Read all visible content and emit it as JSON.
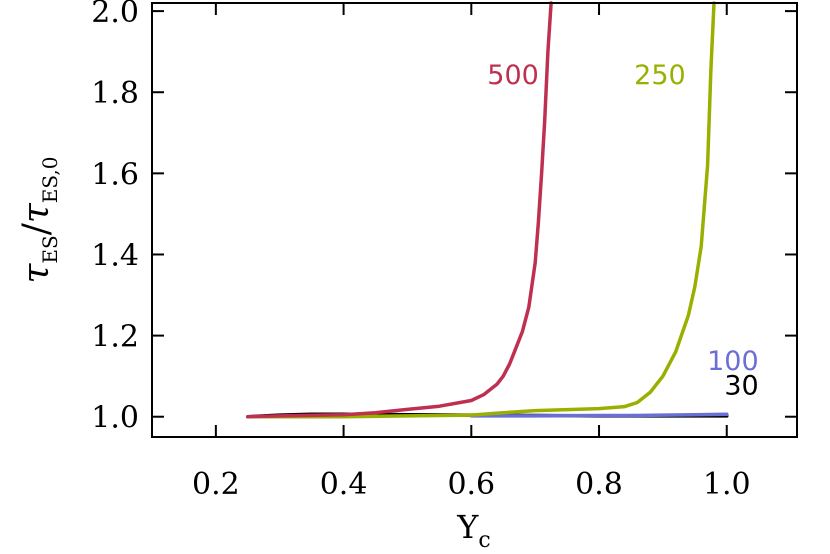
{
  "chart_data": {
    "type": "line",
    "title": "",
    "xlabel": {
      "main": "Y",
      "sub": "c"
    },
    "ylabel": {
      "num": "τ",
      "num_sub": "ES",
      "sep": "/",
      "den": "τ",
      "den_sub": "ES,0"
    },
    "xlim": [
      0.1,
      1.11
    ],
    "ylim": [
      0.95,
      2.02
    ],
    "xticks": [
      0.2,
      0.4,
      0.6,
      0.8,
      1.0
    ],
    "xtick_labels": [
      "0.2",
      "0.4",
      "0.6",
      "0.8",
      "1.0"
    ],
    "yticks": [
      1.0,
      1.2,
      1.4,
      1.6,
      1.8,
      2.0
    ],
    "ytick_labels": [
      "1.0",
      "1.2",
      "1.4",
      "1.6",
      "1.8",
      "2.0"
    ],
    "grid": false,
    "series": [
      {
        "name": "30",
        "color": "#000000",
        "x": [
          0.25,
          0.3,
          0.35,
          0.4,
          0.5,
          0.6,
          0.7,
          0.8,
          0.9,
          1.0
        ],
        "y": [
          1.0,
          1.004,
          1.006,
          1.006,
          1.005,
          1.004,
          1.003,
          1.002,
          1.002,
          1.002
        ]
      },
      {
        "name": "100",
        "color": "#6a6fd6",
        "x": [
          0.6,
          0.7,
          0.8,
          0.85,
          0.9,
          0.95,
          1.0
        ],
        "y": [
          1.002,
          1.002,
          1.003,
          1.003,
          1.004,
          1.005,
          1.006
        ]
      },
      {
        "name": "250",
        "color": "#9ab000",
        "x": [
          0.25,
          0.4,
          0.5,
          0.6,
          0.65,
          0.7,
          0.8,
          0.84,
          0.86,
          0.88,
          0.9,
          0.92,
          0.94,
          0.95,
          0.96,
          0.97,
          0.975,
          0.98
        ],
        "y": [
          1.0,
          1.0,
          1.002,
          1.004,
          1.01,
          1.015,
          1.02,
          1.025,
          1.035,
          1.06,
          1.1,
          1.16,
          1.25,
          1.32,
          1.42,
          1.62,
          1.85,
          2.02
        ]
      },
      {
        "name": "500",
        "color": "#bf3050",
        "x": [
          0.25,
          0.3,
          0.4,
          0.45,
          0.5,
          0.55,
          0.6,
          0.62,
          0.64,
          0.65,
          0.66,
          0.67,
          0.68,
          0.69,
          0.7,
          0.705,
          0.71,
          0.715,
          0.72,
          0.725
        ],
        "y": [
          1.0,
          1.002,
          1.005,
          1.01,
          1.018,
          1.026,
          1.04,
          1.055,
          1.08,
          1.1,
          1.13,
          1.17,
          1.21,
          1.27,
          1.38,
          1.48,
          1.6,
          1.73,
          1.9,
          2.02
        ]
      }
    ],
    "annotations": [
      {
        "text": "500",
        "color": "#bf3050",
        "x": 0.625,
        "y": 1.82,
        "anchor": "start"
      },
      {
        "text": "250",
        "color": "#9ab000",
        "x": 0.855,
        "y": 1.82,
        "anchor": "start"
      },
      {
        "text": "100",
        "color": "#6a6fd6",
        "x": 1.05,
        "y": 1.115,
        "anchor": "end"
      },
      {
        "text": "30",
        "color": "#000000",
        "x": 1.05,
        "y": 1.055,
        "anchor": "end"
      }
    ]
  }
}
